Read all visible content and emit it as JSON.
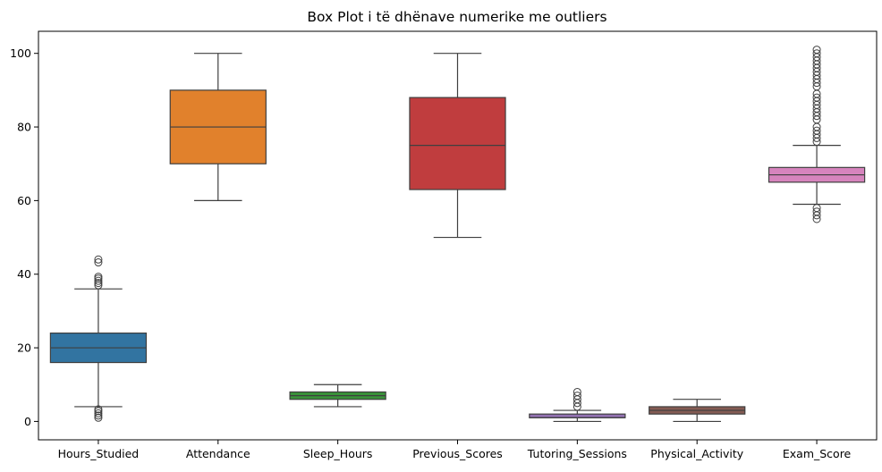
{
  "chart_data": {
    "type": "box",
    "title": "Box Plot i të dhënave numerike me outliers",
    "xlabel": "",
    "ylabel": "",
    "ylim": [
      -5,
      106
    ],
    "yticks": [
      0,
      20,
      40,
      60,
      80,
      100
    ],
    "grid": false,
    "categories": [
      "Hours_Studied",
      "Attendance",
      "Sleep_Hours",
      "Previous_Scores",
      "Tutoring_Sessions",
      "Physical_Activity",
      "Exam_Score"
    ],
    "boxes": [
      {
        "category": "Hours_Studied",
        "color": "#3274a1",
        "whisker_low": 4,
        "q1": 16,
        "median": 20,
        "q3": 24,
        "whisker_high": 36,
        "outliers": [
          1,
          1.6,
          2.2,
          2.8,
          3.3,
          37,
          37.6,
          38.2,
          38.8,
          39.3,
          43.2,
          44
        ]
      },
      {
        "category": "Attendance",
        "color": "#e1812c",
        "whisker_low": 60,
        "q1": 70,
        "median": 80,
        "q3": 90,
        "whisker_high": 100,
        "outliers": []
      },
      {
        "category": "Sleep_Hours",
        "color": "#3a923a",
        "whisker_low": 4,
        "q1": 6,
        "median": 7,
        "q3": 8,
        "whisker_high": 10,
        "outliers": []
      },
      {
        "category": "Previous_Scores",
        "color": "#c03d3e",
        "whisker_low": 50,
        "q1": 63,
        "median": 75,
        "q3": 88,
        "whisker_high": 100,
        "outliers": []
      },
      {
        "category": "Tutoring_Sessions",
        "color": "#9372b2",
        "whisker_low": 0,
        "q1": 1,
        "median": 1,
        "q3": 2,
        "whisker_high": 3,
        "outliers": [
          4,
          5,
          6,
          7,
          8
        ]
      },
      {
        "category": "Physical_Activity",
        "color": "#845b53",
        "whisker_low": 0,
        "q1": 2,
        "median": 3,
        "q3": 4,
        "whisker_high": 6,
        "outliers": []
      },
      {
        "category": "Exam_Score",
        "color": "#d684bd",
        "whisker_low": 59,
        "q1": 65,
        "median": 67,
        "q3": 69,
        "whisker_high": 75,
        "outliers": [
          55,
          56,
          57,
          58,
          76,
          77,
          78,
          79,
          80,
          82,
          83,
          84,
          85,
          86,
          87,
          88,
          89,
          91,
          92,
          93,
          94,
          95,
          96,
          97,
          98,
          99,
          100,
          101
        ]
      }
    ]
  }
}
